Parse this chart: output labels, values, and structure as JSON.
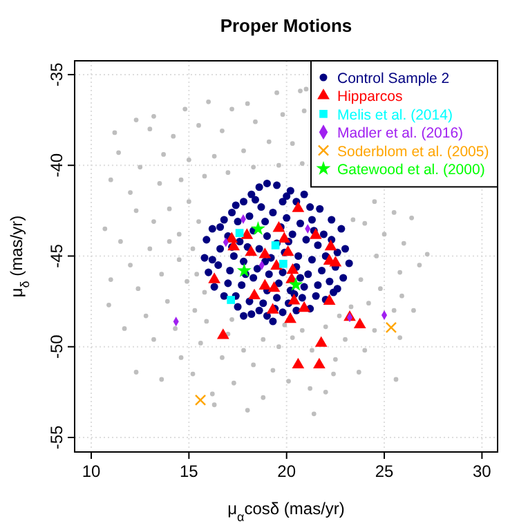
{
  "chart_data": {
    "type": "scatter",
    "title": "Proper Motions",
    "xlabel": "μ$_{α}$cosδ (mas/yr)",
    "ylabel": "μ$_{δ}$ (mas/yr)",
    "xlim": [
      9.15,
      30.8
    ],
    "ylim": [
      -55.8,
      -34.24
    ],
    "xticks": [
      10,
      15,
      20,
      25,
      30
    ],
    "yticks": [
      -55,
      -50,
      -45,
      -40,
      -35
    ],
    "grid": true,
    "legend": "top right",
    "series": [
      {
        "color": "#bebebe",
        "marker": "circle",
        "x": [
          20.7,
          21.0,
          19.5,
          18.0,
          17.2,
          16.0,
          14.8,
          13.2,
          12.3,
          11.2,
          11.4,
          13.0,
          14.2,
          15.5,
          16.7,
          18.4,
          19.8,
          20.9,
          20.3,
          19.1,
          17.8,
          16.3,
          15.0,
          13.7,
          12.5,
          11.0,
          12.0,
          13.5,
          14.6,
          15.8,
          17.0,
          18.3,
          19.6,
          20.8,
          10.7,
          11.5,
          12.3,
          13.2,
          14.0,
          15.0,
          15.5,
          14.5,
          13.0,
          12.0,
          11.0,
          10.9,
          12.4,
          13.6,
          14.5,
          15.2,
          14.9,
          13.9,
          12.8,
          11.7,
          13.2,
          14.3,
          15.3,
          15.6,
          14.6,
          12.3,
          13.6,
          15.2,
          14.0,
          15.8,
          24.5,
          25.5,
          24.0,
          25.0,
          26.0,
          27.2,
          26.8,
          25.8,
          24.6,
          23.8,
          24.8,
          25.9,
          26.5,
          25.5,
          24.2,
          23.3,
          22.7,
          24.5,
          25.8,
          23.0,
          24.0,
          22.5,
          23.7,
          25.6,
          23.4,
          26.4,
          17.0,
          17.8,
          18.8,
          19.6,
          20.3,
          18.3,
          19.3,
          20.1,
          21.2,
          22.0,
          17.3,
          16.2,
          18.8,
          16.7,
          21.3,
          20.8,
          19.9,
          17.2,
          15.9,
          22.0,
          16.3,
          18.0,
          21.4,
          15.4,
          22.4
        ],
        "values": [
          -35.9,
          -35.8,
          -36.0,
          -36.6,
          -36.9,
          -36.5,
          -36.9,
          -37.3,
          -37.5,
          -38.2,
          -39.3,
          -38.0,
          -38.4,
          -37.8,
          -38.1,
          -37.6,
          -37.2,
          -37.0,
          -38.8,
          -38.7,
          -39.2,
          -39.5,
          -39.7,
          -39.4,
          -40.1,
          -40.8,
          -41.5,
          -41.0,
          -40.8,
          -40.6,
          -40.4,
          -40.1,
          -40.0,
          -39.9,
          -43.5,
          -44.2,
          -42.5,
          -43.1,
          -42.4,
          -42.0,
          -43.1,
          -43.8,
          -44.6,
          -45.5,
          -46.3,
          -47.7,
          -46.8,
          -46.0,
          -45.2,
          -44.6,
          -46.4,
          -47.5,
          -48.3,
          -49.0,
          -49.6,
          -49.0,
          -48.0,
          -49.8,
          -50.6,
          -51.4,
          -51.8,
          -51.5,
          -44.2,
          -47.0,
          -42.0,
          -42.6,
          -43.2,
          -43.8,
          -44.3,
          -44.9,
          -45.5,
          -45.9,
          -45.0,
          -46.3,
          -46.8,
          -47.2,
          -48.0,
          -48.0,
          -47.6,
          -47.8,
          -48.3,
          -49.1,
          -49.5,
          -49.6,
          -50.2,
          -50.7,
          -51.4,
          -51.8,
          -43.0,
          -42.9,
          -49.3,
          -50.2,
          -49.6,
          -50.0,
          -49.5,
          -51.0,
          -51.3,
          -51.9,
          -52.3,
          -52.5,
          -52.0,
          -52.6,
          -52.8,
          -50.6,
          -50.2,
          -49.1,
          -48.8,
          -48.5,
          -48.6,
          -48.9,
          -53.2,
          -53.5,
          -53.7,
          -46.0,
          -51.5
        ]
      },
      {
        "name": "Control Sample 2",
        "color": "#000080",
        "marker": "circle",
        "x": [
          19.0,
          18.6,
          19.5,
          18.2,
          20.0,
          17.8,
          20.5,
          21.2,
          21.7,
          17.2,
          16.8,
          16.2,
          22.3,
          22.8,
          15.9,
          15.8,
          23.0,
          23.2,
          16.0,
          22.9,
          16.3,
          22.6,
          16.8,
          22.0,
          17.5,
          21.2,
          18.2,
          19.0,
          19.8,
          20.5,
          17.5,
          18.1,
          18.7,
          19.3,
          20.0,
          20.7,
          21.3,
          21.9,
          17.0,
          17.6,
          18.3,
          19.0,
          19.7,
          20.3,
          21.0,
          21.6,
          22.3,
          16.6,
          17.3,
          18.0,
          18.6,
          19.2,
          19.9,
          20.6,
          21.3,
          22.0,
          22.5,
          16.5,
          17.1,
          17.8,
          18.5,
          19.1,
          19.8,
          20.5,
          21.1,
          21.8,
          17.0,
          17.7,
          18.3,
          19.0,
          19.6,
          20.2,
          20.9,
          21.6,
          22.2,
          17.4,
          18.1,
          18.8,
          19.5,
          20.1,
          20.8,
          21.5,
          18.6,
          19.4,
          20.9,
          19.8,
          18.4,
          17.4,
          22.6,
          16.2,
          20.1,
          18.9,
          19.5,
          17.9,
          20.7,
          21.4,
          18.9,
          17.2,
          20.4,
          19.3,
          16.6,
          22.4,
          17.8,
          20.2
        ],
        "values": [
          -41.0,
          -41.2,
          -41.1,
          -41.6,
          -41.7,
          -42.0,
          -42.0,
          -42.3,
          -42.4,
          -42.6,
          -43.0,
          -43.5,
          -43.0,
          -43.5,
          -44.1,
          -45.1,
          -44.6,
          -45.4,
          -45.9,
          -46.2,
          -46.7,
          -46.8,
          -47.2,
          -47.4,
          -47.8,
          -47.9,
          -48.2,
          -48.3,
          -48.1,
          -48.0,
          -43.1,
          -42.8,
          -42.3,
          -42.6,
          -42.9,
          -43.2,
          -43.0,
          -43.8,
          -43.9,
          -44.2,
          -43.6,
          -43.9,
          -43.4,
          -43.8,
          -44.1,
          -44.4,
          -44.1,
          -44.6,
          -45.0,
          -44.5,
          -44.6,
          -45.1,
          -44.8,
          -45.0,
          -45.2,
          -45.0,
          -45.6,
          -45.5,
          -45.8,
          -45.3,
          -45.7,
          -46.0,
          -45.9,
          -45.6,
          -46.0,
          -45.8,
          -46.5,
          -46.6,
          -46.2,
          -46.9,
          -46.5,
          -46.9,
          -46.7,
          -46.6,
          -46.4,
          -47.2,
          -47.5,
          -47.6,
          -47.3,
          -47.6,
          -47.3,
          -47.2,
          -48.0,
          -47.9,
          -41.6,
          -42.0,
          -41.9,
          -42.2,
          -44.8,
          -45.2,
          -44.2,
          -45.3,
          -44.3,
          -46.0,
          -46.2,
          -43.6,
          -43.1,
          -44.5,
          -47.1,
          -48.6,
          -43.4,
          -47.0,
          -48.3,
          -41.4
        ]
      },
      {
        "name": "Hipparcos",
        "color": "#ff0000",
        "marker": "triangle",
        "x": [
          20.59,
          19.6,
          17.97,
          17.19,
          17.29,
          19.88,
          21.49,
          22.26,
          18.89,
          18.18,
          20.07,
          22.19,
          22.5,
          19.48,
          20.31,
          16.3,
          18.89,
          19.36,
          20.26,
          18.35,
          20.38,
          22.19,
          19.29,
          20.9,
          20.19,
          16.75,
          21.77,
          23.75,
          23.23,
          20.59,
          21.67
        ],
        "values": [
          -42.38,
          -43.47,
          -43.86,
          -44.06,
          -44.49,
          -44.06,
          -43.86,
          -44.49,
          -44.92,
          -44.8,
          -44.8,
          -45.28,
          -45.38,
          -45.56,
          -45.79,
          -46.3,
          -46.65,
          -46.78,
          -46.3,
          -47.19,
          -47.47,
          -47.49,
          -47.98,
          -47.88,
          -48.49,
          -49.38,
          -49.81,
          -48.79,
          -48.38,
          -51.0,
          -51.0
        ]
      },
      {
        "name": "Melis et al. (2014)",
        "color": "#00ffff",
        "marker": "square",
        "x": [
          17.59,
          19.43,
          19.83,
          17.15
        ],
        "values": [
          -43.73,
          -44.41,
          -45.43,
          -47.42
        ]
      },
      {
        "name": "Madler et al. (2016)",
        "color": "#a020f0",
        "marker": "diamond",
        "x": [
          17.78,
          16.89,
          18.73,
          21.08,
          14.34,
          23.23,
          25.0
        ],
        "values": [
          -42.96,
          -44.24,
          -45.51,
          -43.5,
          -48.61,
          -48.38,
          -48.26
        ]
      },
      {
        "name": "Soderblom et al. (2005)",
        "color": "#ffa500",
        "marker": "cross",
        "x": [
          25.35,
          15.59
        ],
        "values": [
          -48.94,
          -52.94
        ]
      },
      {
        "name": "Gatewood et al. (2000)",
        "color": "#00ff00",
        "marker": "star",
        "x": [
          18.54,
          17.83,
          20.47
        ],
        "values": [
          -43.5,
          -45.81,
          -46.58
        ]
      }
    ]
  }
}
